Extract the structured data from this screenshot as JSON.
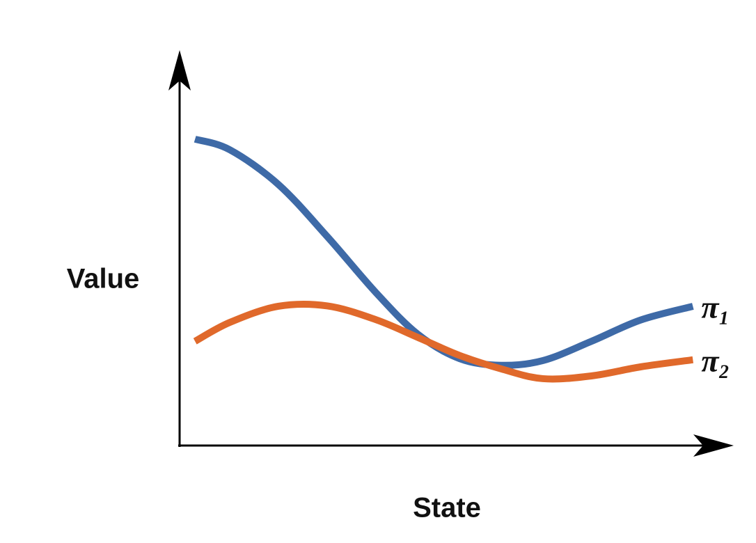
{
  "chart_data": {
    "type": "line",
    "x_label": "State",
    "y_label": "Value",
    "x": [
      2.8,
      9.1,
      17.9,
      26.8,
      35.6,
      43.2,
      50.8,
      58.3,
      65.9,
      74.7,
      83.6,
      93.1
    ],
    "xlim": [
      0,
      100
    ],
    "ylim": [
      0,
      100
    ],
    "series": [
      {
        "name": "π₁",
        "color": "#3e6aa7",
        "values": [
          77.9,
          75.2,
          66.4,
          53.1,
          38.9,
          28.3,
          22.1,
          20.4,
          21.6,
          26.5,
          31.9,
          35.4
        ]
      },
      {
        "name": "π₂",
        "color": "#e0692b",
        "values": [
          26.5,
          31.3,
          35.4,
          35.5,
          32.0,
          27.5,
          22.9,
          19.5,
          17.0,
          17.7,
          20.0,
          21.8
        ]
      }
    ]
  }
}
